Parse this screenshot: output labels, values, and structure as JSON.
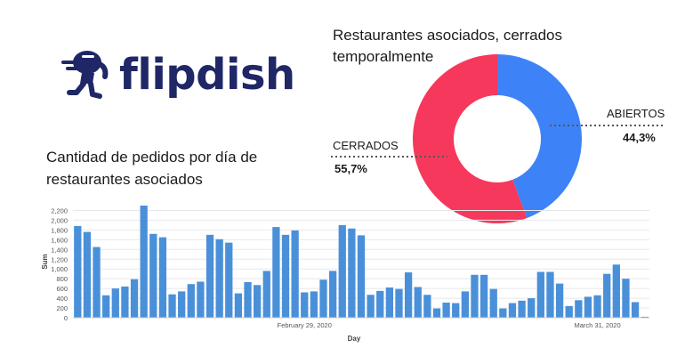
{
  "logo": {
    "brand": "flipdish",
    "icon": "running-person-icon",
    "color": "#1f2767"
  },
  "bar_chart_title": "Cantidad de pedidos por día de restaurantes asociados",
  "pie_chart_title": "Restaurantes asociados, cerrados temporalmente",
  "chart_data": [
    {
      "type": "bar",
      "title": "Cantidad de pedidos por día de restaurantes asociados",
      "xlabel": "Day",
      "ylabel": "Sum",
      "ylim": [
        0,
        2300
      ],
      "yticks": [
        0,
        200,
        400,
        600,
        800,
        1000,
        1200,
        1400,
        1600,
        1800,
        2000,
        2200
      ],
      "ytick_labels": [
        "0",
        "200",
        "400",
        "600",
        "800",
        "1,000",
        "1,200",
        "1,400",
        "1,600",
        "1,800",
        "2,000",
        "2,200"
      ],
      "x_tick_labels": [
        {
          "label": "February 29, 2020",
          "bar_index": 24
        },
        {
          "label": "March 31, 2020",
          "bar_index": 55
        }
      ],
      "grid": true,
      "color": "#4a90d9",
      "values": [
        1880,
        1760,
        1450,
        460,
        600,
        640,
        790,
        2300,
        1720,
        1650,
        480,
        540,
        690,
        740,
        1700,
        1610,
        1540,
        500,
        730,
        670,
        960,
        1860,
        1700,
        1790,
        520,
        540,
        780,
        960,
        1900,
        1830,
        1690,
        470,
        550,
        620,
        590,
        930,
        630,
        470,
        190,
        310,
        300,
        540,
        880,
        880,
        590,
        190,
        300,
        350,
        400,
        940,
        940,
        700,
        240,
        360,
        430,
        460,
        900,
        1090,
        800,
        320,
        20
      ]
    },
    {
      "type": "pie",
      "title": "Restaurantes asociados, cerrados temporalmente",
      "donut": true,
      "slices": [
        {
          "label": "ABIERTOS",
          "value": 44.3,
          "value_label": "44,3%",
          "color": "#3e82f7"
        },
        {
          "label": "CERRADOS",
          "value": 55.7,
          "value_label": "55,7%",
          "color": "#f7385d"
        }
      ]
    }
  ]
}
